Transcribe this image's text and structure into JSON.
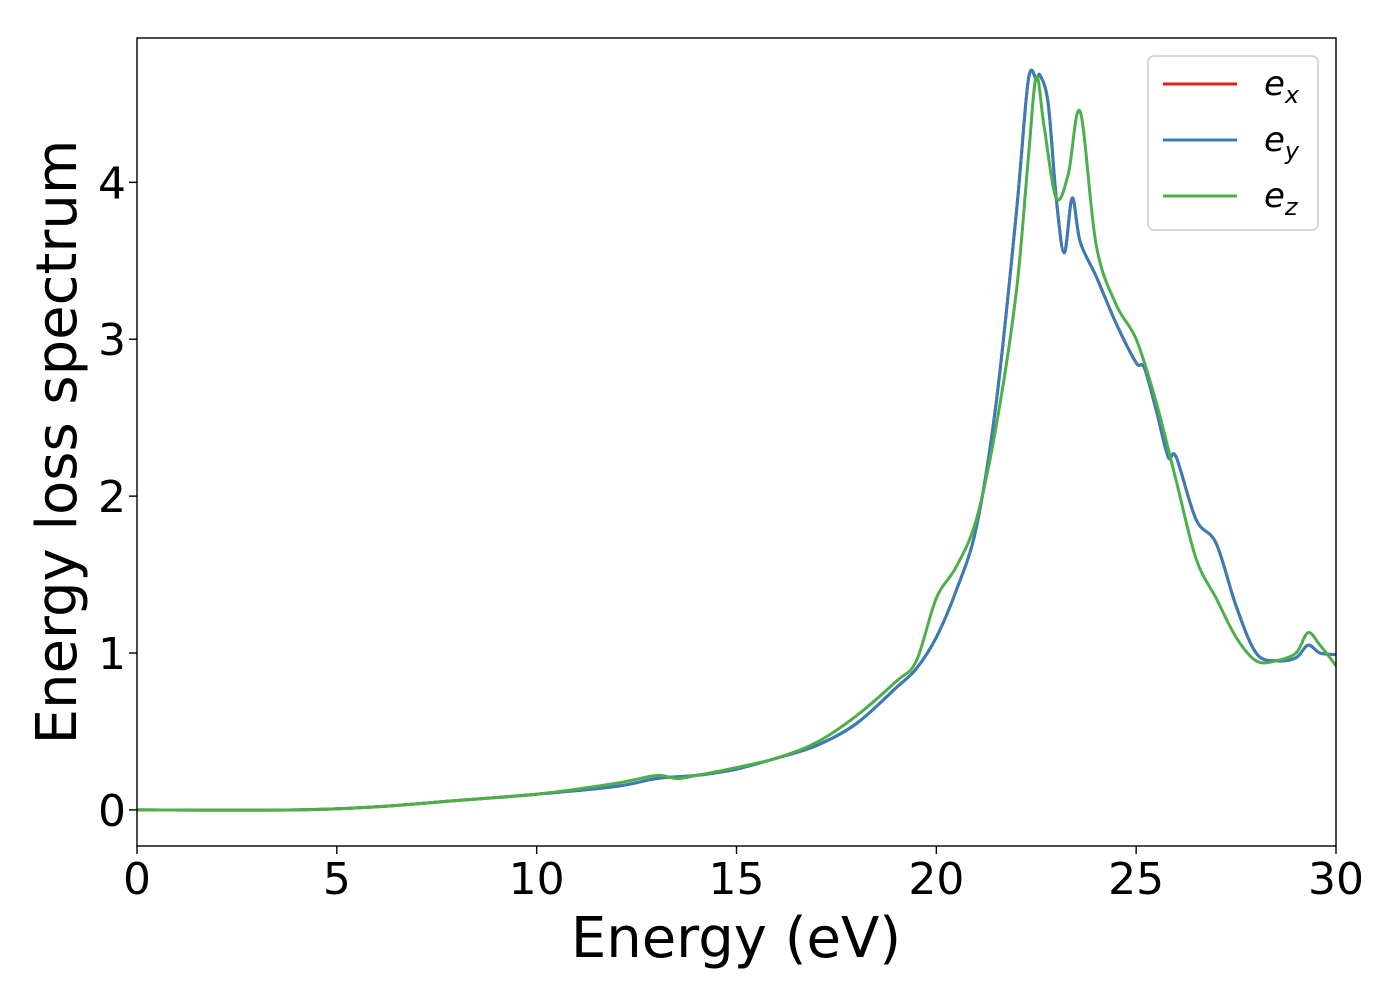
{
  "chart_data": {
    "type": "line",
    "xlabel": "Energy (eV)",
    "ylabel": "Energy loss spectrum",
    "xlim": [
      0,
      30
    ],
    "ylim": [
      -0.23,
      4.92
    ],
    "xticks": [
      "0",
      "5",
      "10",
      "15",
      "20",
      "25",
      "30"
    ],
    "yticks": [
      "0",
      "1",
      "2",
      "3",
      "4"
    ],
    "grid": false,
    "legend_position": "top-right",
    "series": [
      {
        "name": "e",
        "subscript": "x",
        "color": "#e41a1c",
        "x": [
          0,
          4,
          6,
          8,
          10,
          12,
          13,
          14,
          15,
          16,
          17,
          18,
          19,
          19.5,
          20,
          20.5,
          21,
          21.5,
          22,
          22.3,
          22.5,
          22.6,
          22.8,
          23,
          23.2,
          23.4,
          23.6,
          24,
          24.5,
          25,
          25.2,
          25.5,
          25.8,
          26,
          26.5,
          27,
          27.5,
          28,
          28.5,
          29,
          29.3,
          29.6,
          30
        ],
        "y": [
          0,
          0,
          0.02,
          0.06,
          0.1,
          0.15,
          0.2,
          0.22,
          0.26,
          0.33,
          0.41,
          0.55,
          0.78,
          0.9,
          1.1,
          1.4,
          1.8,
          2.6,
          3.8,
          4.65,
          4.66,
          4.68,
          4.5,
          3.9,
          3.55,
          3.9,
          3.62,
          3.4,
          3.1,
          2.85,
          2.82,
          2.55,
          2.25,
          2.25,
          1.85,
          1.7,
          1.3,
          1.0,
          0.95,
          0.97,
          1.05,
          1.0,
          0.99
        ]
      },
      {
        "name": "e",
        "subscript": "y",
        "color": "#377eb8",
        "x": [
          0,
          4,
          6,
          8,
          10,
          12,
          13,
          14,
          15,
          16,
          17,
          18,
          19,
          19.5,
          20,
          20.5,
          21,
          21.5,
          22,
          22.3,
          22.5,
          22.6,
          22.8,
          23,
          23.2,
          23.4,
          23.6,
          24,
          24.5,
          25,
          25.2,
          25.5,
          25.8,
          26,
          26.5,
          27,
          27.5,
          28,
          28.5,
          29,
          29.3,
          29.6,
          30
        ],
        "y": [
          0,
          0,
          0.02,
          0.06,
          0.1,
          0.15,
          0.2,
          0.22,
          0.26,
          0.33,
          0.41,
          0.55,
          0.78,
          0.9,
          1.1,
          1.4,
          1.8,
          2.6,
          3.8,
          4.65,
          4.66,
          4.68,
          4.5,
          3.9,
          3.55,
          3.9,
          3.62,
          3.4,
          3.1,
          2.85,
          2.82,
          2.55,
          2.25,
          2.25,
          1.85,
          1.7,
          1.3,
          1.0,
          0.95,
          0.97,
          1.05,
          1.0,
          0.99
        ]
      },
      {
        "name": "e",
        "subscript": "z",
        "color": "#4daf4a",
        "x": [
          0,
          4,
          6,
          8,
          10,
          12,
          13,
          13.5,
          14,
          15,
          16,
          17,
          18,
          19,
          19.5,
          20,
          20.5,
          21,
          21.5,
          22,
          22.3,
          22.5,
          22.7,
          23,
          23.3,
          23.6,
          24,
          24.5,
          25,
          25.5,
          26,
          26.5,
          27,
          27.5,
          28,
          28.5,
          29,
          29.3,
          29.6,
          30
        ],
        "y": [
          0,
          0,
          0.02,
          0.06,
          0.1,
          0.17,
          0.22,
          0.2,
          0.22,
          0.27,
          0.33,
          0.43,
          0.6,
          0.82,
          0.95,
          1.35,
          1.55,
          1.85,
          2.45,
          3.3,
          4.15,
          4.67,
          4.35,
          3.9,
          4.05,
          4.45,
          3.6,
          3.22,
          3.0,
          2.6,
          2.1,
          1.6,
          1.35,
          1.1,
          0.95,
          0.95,
          1.0,
          1.13,
          1.05,
          0.92
        ]
      }
    ]
  }
}
